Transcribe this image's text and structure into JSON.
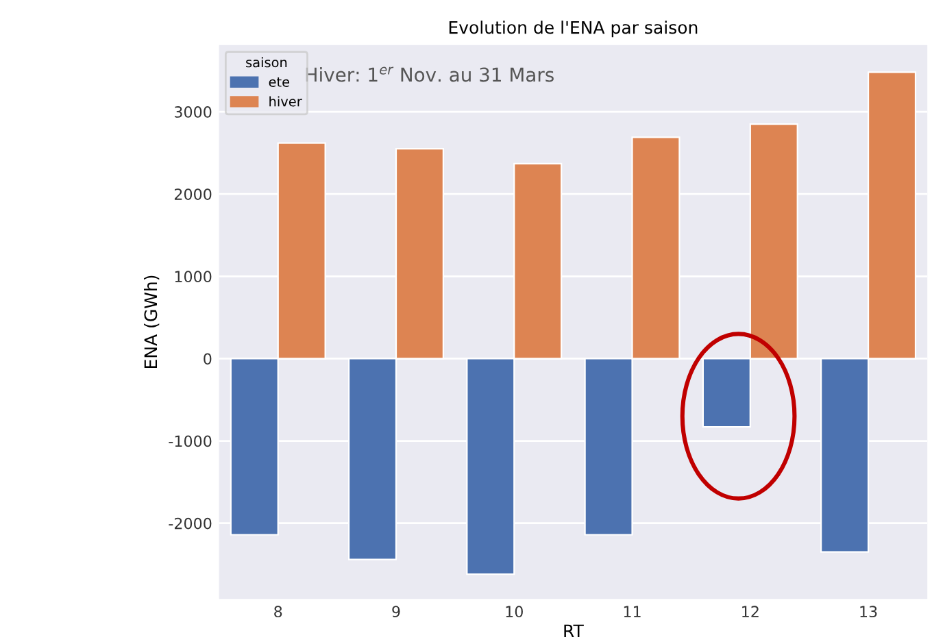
{
  "chart_data": {
    "type": "bar",
    "title": "Evolution de l'ENA par saison",
    "xlabel": "RT",
    "ylabel": "ENA (GWh)",
    "legend_title": "saison",
    "annotations": [
      "Hiver: 1$^{er}$ Nov. au 31 Mars"
    ],
    "categories": [
      "8",
      "9",
      "10",
      "11",
      "12",
      "13"
    ],
    "series": [
      {
        "name": "ete",
        "color": "#4c72b0",
        "values": [
          -2140,
          -2440,
          -2620,
          -2140,
          -830,
          -2350
        ]
      },
      {
        "name": "hiver",
        "color": "#dd8452",
        "values": [
          2620,
          2550,
          2370,
          2690,
          2850,
          3480
        ]
      }
    ],
    "ylim": [
      -2920,
      3810
    ],
    "yticks": [
      -2000,
      -1000,
      0,
      1000,
      2000,
      3000
    ],
    "grid": "y",
    "legend": "top left"
  }
}
